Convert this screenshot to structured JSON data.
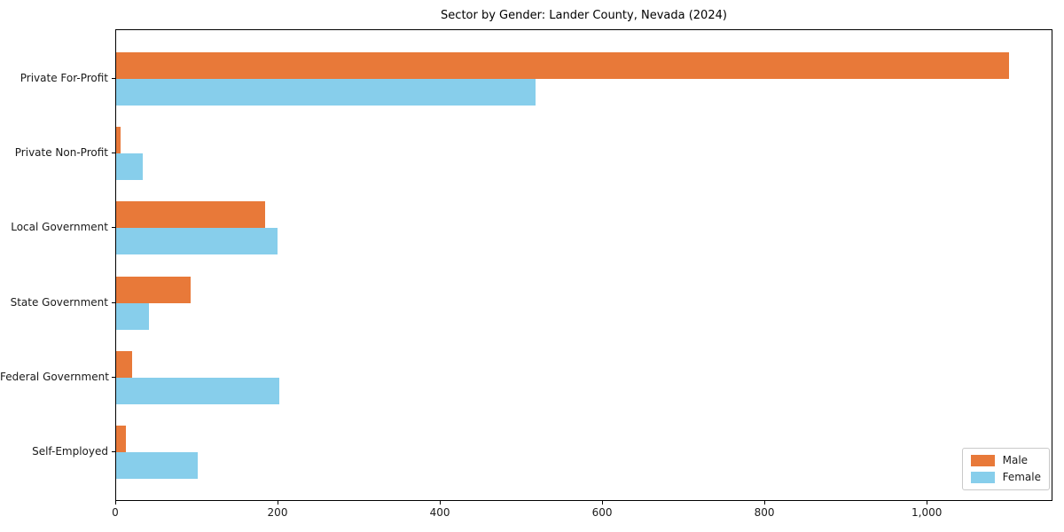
{
  "chart_data": {
    "type": "bar",
    "orientation": "horizontal",
    "title": "Sector by Gender: Lander County, Nevada (2024)",
    "xlabel": "",
    "ylabel": "",
    "categories": [
      "Private For-Profit",
      "Private Non-Profit",
      "Local Government",
      "State Government",
      "Federal Government",
      "Self-Employed"
    ],
    "series": [
      {
        "name": "Male",
        "color": "#E87939",
        "values": [
          1100,
          5,
          183,
          92,
          20,
          12
        ]
      },
      {
        "name": "Female",
        "color": "#87CEEB",
        "values": [
          517,
          33,
          199,
          40,
          201,
          100
        ]
      }
    ],
    "xlim": [
      0,
      1155
    ],
    "x_ticks": [
      0,
      200,
      400,
      600,
      800,
      1000
    ],
    "x_tick_labels": [
      "0",
      "200",
      "400",
      "600",
      "800",
      "1,000"
    ],
    "legend_position": "lower right",
    "grid": false,
    "plot_border_color": "#000000",
    "background_color": "#ffffff"
  }
}
